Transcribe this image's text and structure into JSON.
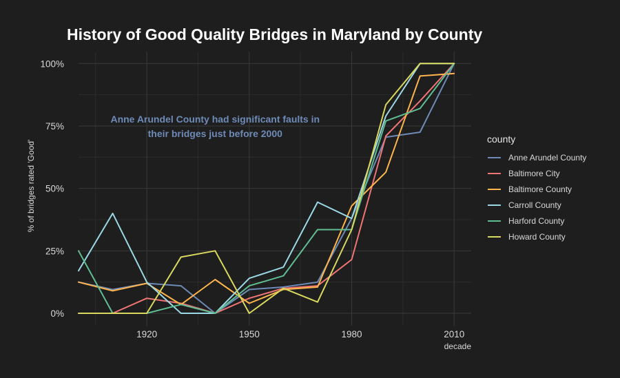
{
  "chart_data": {
    "type": "line",
    "title": "History of Good Quality Bridges in Maryland by County",
    "xlabel": "decade",
    "ylabel": "% of bridges rated 'Good'",
    "xlim": [
      1900,
      2015
    ],
    "ylim": [
      0,
      100
    ],
    "x_ticks": [
      1920,
      1950,
      1980,
      2010
    ],
    "y_ticks": [
      0,
      25,
      50,
      75,
      100
    ],
    "y_tick_labels": [
      "0%",
      "25%",
      "50%",
      "75%",
      "100%"
    ],
    "grid": true,
    "legend_title": "county",
    "legend_position": "right",
    "annotation": {
      "lines": [
        "Anne Arundel County had significant faults in",
        "their bridges just before 2000"
      ],
      "x": 1940,
      "y": 75,
      "color": "#6e8bb8"
    },
    "x": [
      1900,
      1910,
      1920,
      1930,
      1940,
      1950,
      1960,
      1970,
      1980,
      1990,
      2000,
      2010
    ],
    "series": [
      {
        "name": "Anne Arundel County",
        "color": "#6e8bb8",
        "values": [
          12.5,
          9.5,
          12,
          11,
          0,
          9.5,
          10.5,
          12.5,
          38,
          70.5,
          72.5,
          100
        ]
      },
      {
        "name": "Baltimore City",
        "color": "#f07575",
        "values": [
          0,
          0,
          6,
          4,
          0,
          6,
          10,
          11,
          21.5,
          71,
          85,
          100
        ]
      },
      {
        "name": "Baltimore County",
        "color": "#ffb54d",
        "values": [
          12.5,
          9,
          12,
          3.5,
          13.5,
          4,
          9.5,
          10.5,
          43,
          56.5,
          95,
          96
        ]
      },
      {
        "name": "Carroll County",
        "color": "#9cd9e6",
        "values": [
          17,
          40,
          12.5,
          0,
          0,
          14,
          18.5,
          44.5,
          38,
          79,
          100,
          100
        ]
      },
      {
        "name": "Harford County",
        "color": "#5fbf93",
        "values": [
          25,
          0,
          0,
          3.5,
          0,
          11,
          15,
          33.5,
          33.5,
          77,
          82,
          100
        ]
      },
      {
        "name": "Howard County",
        "color": "#d9d95f",
        "values": [
          0,
          0,
          0,
          22.5,
          25,
          0,
          10,
          4.5,
          33.5,
          83.5,
          100,
          100
        ]
      }
    ]
  }
}
